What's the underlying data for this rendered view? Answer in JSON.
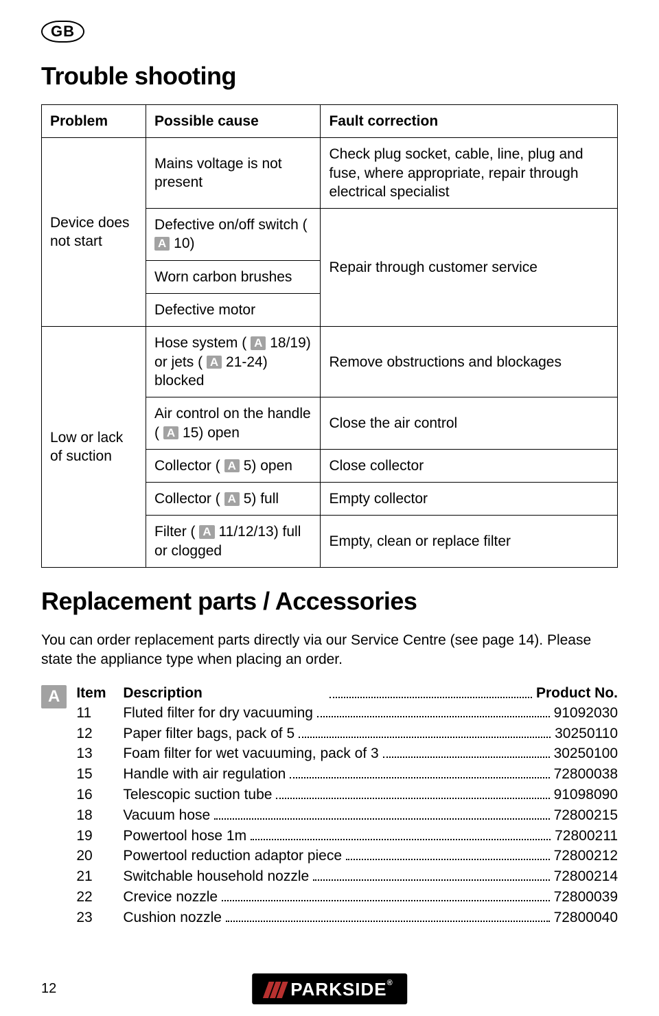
{
  "region": "GB",
  "headings": {
    "trouble": "Trouble shooting",
    "replacement": "Replacement parts / Accessories"
  },
  "trouble_table": {
    "headers": {
      "problem": "Problem",
      "cause": "Possible cause",
      "fix": "Fault correction"
    },
    "problem1": "Device does not start",
    "problem2": "Low or lack of suction",
    "p1": {
      "c1": "Mains voltage is not present",
      "f1": "Check plug socket, cable, line, plug and fuse, where appropriate, repair through electrical specialist",
      "c2a": "Defective on/off switch (",
      "c2b": "10)",
      "c3": "Worn carbon brushes",
      "f23": "Repair through customer service",
      "c4": "Defective motor"
    },
    "p2": {
      "c1a": "Hose system (",
      "c1b": "18/19) or jets (",
      "c1c": "21-24) blocked",
      "f1": "Remove obstructions and blockages",
      "c2a": "Air control on the handle (",
      "c2b": "15) open",
      "f2": "Close the air control",
      "c3a": "Collector (",
      "c3b": "5) open",
      "f3": "Close collector",
      "c4a": "Collector (",
      "c4b": "5) full",
      "f4": "Empty collector",
      "c5a": "Filter (",
      "c5b": "11/12/13) full or clogged",
      "f5": "Empty, clean or replace filter"
    }
  },
  "intro": "You can order replacement parts directly via our Service Centre (see page 14). Please state the appliance type when placing an order.",
  "parts": {
    "h_item": "Item",
    "h_desc": "Description",
    "h_prod": "Product No.",
    "rows": [
      {
        "item": "11",
        "desc": "Fluted filter for dry vacuuming",
        "prod": "91092030"
      },
      {
        "item": "12",
        "desc": "Paper filter bags, pack of 5",
        "prod": "30250110"
      },
      {
        "item": "13",
        "desc": "Foam filter for wet vacuuming, pack of 3",
        "prod": "30250100"
      },
      {
        "item": "15",
        "desc": "Handle with air regulation",
        "prod": "72800038"
      },
      {
        "item": "16",
        "desc": "Telescopic suction tube",
        "prod": "91098090"
      },
      {
        "item": "18",
        "desc": "Vacuum hose",
        "prod": "72800215"
      },
      {
        "item": "19",
        "desc": "Powertool hose 1m",
        "prod": "72800211"
      },
      {
        "item": "20",
        "desc": "Powertool reduction adaptor piece",
        "prod": "72800212"
      },
      {
        "item": "21",
        "desc": "Switchable household nozzle",
        "prod": "72800214"
      },
      {
        "item": "22",
        "desc": "Crevice nozzle",
        "prod": "72800039"
      },
      {
        "item": "23",
        "desc": "Cushion nozzle",
        "prod": "72800040"
      }
    ]
  },
  "footer": {
    "page": "12",
    "brand": "PARKSIDE"
  },
  "icon_label": "A",
  "colors": {
    "badge_bg": "#a2a2a2",
    "stripe": "#b8312f"
  }
}
